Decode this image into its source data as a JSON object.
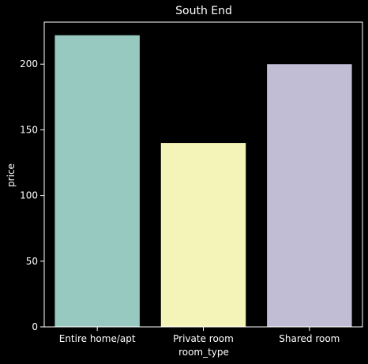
{
  "chart_data": {
    "type": "bar",
    "title": "South End",
    "xlabel": "room_type",
    "ylabel": "price",
    "categories": [
      "Entire home/apt",
      "Private room",
      "Shared room"
    ],
    "values": [
      222,
      140,
      200
    ],
    "colors": [
      "#98c9c1",
      "#f4f4b8",
      "#c0bdd5"
    ],
    "ylim": [
      0,
      232
    ],
    "yticks": [
      0,
      50,
      100,
      150,
      200
    ],
    "grid": false,
    "background": "#000000",
    "axis_color": "#ffffff"
  }
}
